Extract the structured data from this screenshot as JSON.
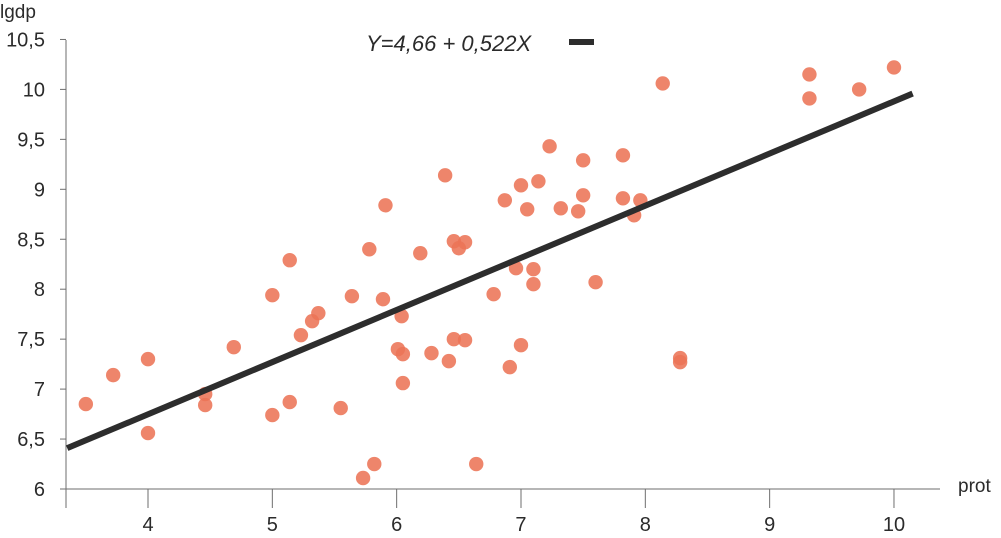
{
  "chart_data": {
    "type": "scatter",
    "title": "",
    "xlabel": "prot",
    "ylabel": "lgdp",
    "xlim": [
      3.35,
      10.35
    ],
    "ylim": [
      6.0,
      10.5
    ],
    "x_ticks": [
      4,
      5,
      6,
      7,
      8,
      9,
      10
    ],
    "x_tick_labels": [
      "4",
      "5",
      "6",
      "7",
      "8",
      "9",
      "10"
    ],
    "y_ticks": [
      6,
      6.5,
      7,
      7.5,
      8,
      8.5,
      9,
      9.5,
      10,
      10.5
    ],
    "y_tick_labels": [
      "6",
      "6,5",
      "7",
      "7,5",
      "8",
      "8,5",
      "9",
      "9,5",
      "10",
      "10,5"
    ],
    "grid": false,
    "legend": {
      "label": "Y=4,66 + 0,522X",
      "position": "top-center"
    },
    "colors": {
      "points": "#ec7456",
      "line": "#2d2d2d",
      "axis": "#6e6e6e"
    },
    "regression": {
      "intercept": 4.66,
      "slope": 0.522,
      "x_range": [
        3.35,
        10.15
      ]
    },
    "series": [
      {
        "points": [
          [
            3.5,
            6.85
          ],
          [
            3.72,
            7.14
          ],
          [
            4.0,
            7.3
          ],
          [
            4.0,
            6.56
          ],
          [
            4.46,
            6.95
          ],
          [
            4.46,
            6.84
          ],
          [
            4.69,
            7.42
          ],
          [
            5.0,
            7.94
          ],
          [
            5.0,
            6.74
          ],
          [
            5.14,
            8.29
          ],
          [
            5.14,
            6.87
          ],
          [
            5.23,
            7.54
          ],
          [
            5.32,
            7.68
          ],
          [
            5.37,
            7.76
          ],
          [
            5.55,
            6.81
          ],
          [
            5.64,
            7.93
          ],
          [
            5.73,
            6.11
          ],
          [
            5.78,
            8.4
          ],
          [
            5.82,
            6.25
          ],
          [
            5.89,
            7.9
          ],
          [
            5.91,
            8.84
          ],
          [
            6.01,
            7.4
          ],
          [
            6.04,
            7.73
          ],
          [
            6.05,
            7.35
          ],
          [
            6.05,
            7.06
          ],
          [
            6.19,
            8.36
          ],
          [
            6.28,
            7.36
          ],
          [
            6.39,
            9.14
          ],
          [
            6.42,
            7.28
          ],
          [
            6.46,
            7.5
          ],
          [
            6.46,
            8.48
          ],
          [
            6.5,
            8.41
          ],
          [
            6.55,
            8.47
          ],
          [
            6.55,
            7.49
          ],
          [
            6.64,
            6.25
          ],
          [
            6.78,
            7.95
          ],
          [
            6.87,
            8.89
          ],
          [
            6.91,
            7.22
          ],
          [
            6.96,
            8.21
          ],
          [
            7.0,
            9.04
          ],
          [
            7.0,
            7.44
          ],
          [
            7.05,
            8.8
          ],
          [
            7.1,
            8.2
          ],
          [
            7.1,
            8.05
          ],
          [
            7.14,
            9.08
          ],
          [
            7.23,
            9.43
          ],
          [
            7.32,
            8.81
          ],
          [
            7.46,
            8.78
          ],
          [
            7.5,
            9.29
          ],
          [
            7.5,
            8.94
          ],
          [
            7.6,
            8.07
          ],
          [
            7.82,
            9.34
          ],
          [
            7.82,
            8.91
          ],
          [
            7.91,
            8.74
          ],
          [
            7.96,
            8.89
          ],
          [
            8.14,
            10.06
          ],
          [
            8.28,
            7.31
          ],
          [
            8.28,
            7.27
          ],
          [
            9.32,
            10.15
          ],
          [
            9.32,
            9.91
          ],
          [
            9.72,
            10.0
          ],
          [
            10.0,
            10.22
          ]
        ]
      }
    ]
  }
}
